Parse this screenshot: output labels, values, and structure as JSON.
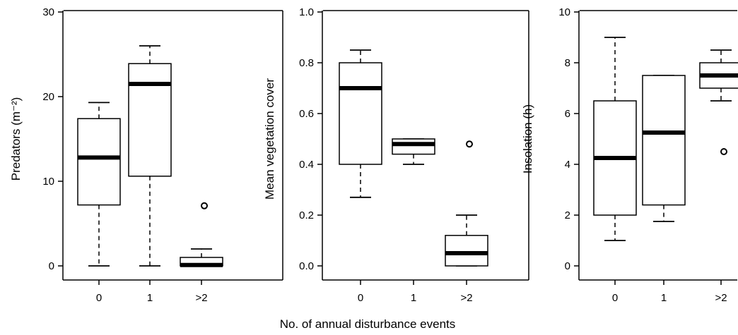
{
  "xlabel": "No. of annual disturbance events",
  "chart_data": [
    {
      "type": "box",
      "ylabel": "Predators (m⁻²)",
      "ylim": [
        0,
        30
      ],
      "yticks": [
        "0",
        "10",
        "20",
        "30"
      ],
      "ytick_values": [
        0,
        10,
        20,
        30
      ],
      "categories": [
        "0",
        "1",
        ">2"
      ],
      "boxes": [
        {
          "category": "0",
          "whisker_low": 0,
          "q1": 7.2,
          "median": 12.8,
          "q3": 17.4,
          "whisker_high": 19.3,
          "outliers": []
        },
        {
          "category": "1",
          "whisker_low": 0,
          "q1": 10.6,
          "median": 21.5,
          "q3": 23.9,
          "whisker_high": 26.0,
          "outliers": []
        },
        {
          "category": ">2",
          "whisker_low": 0,
          "q1": 0,
          "median": 0.1,
          "q3": 1.0,
          "whisker_high": 2.0,
          "outliers": [
            7.1
          ]
        }
      ],
      "grid": false
    },
    {
      "type": "box",
      "ylabel": "Mean vegetation cover",
      "ylim": [
        0,
        1.0
      ],
      "yticks": [
        "0.0",
        "0.2",
        "0.4",
        "0.6",
        "0.8",
        "1.0"
      ],
      "ytick_values": [
        0,
        0.2,
        0.4,
        0.6,
        0.8,
        1.0
      ],
      "categories": [
        "0",
        "1",
        ">2"
      ],
      "boxes": [
        {
          "category": "0",
          "whisker_low": 0.27,
          "q1": 0.4,
          "median": 0.7,
          "q3": 0.8,
          "whisker_high": 0.85,
          "outliers": []
        },
        {
          "category": "1",
          "whisker_low": 0.4,
          "q1": 0.44,
          "median": 0.48,
          "q3": 0.5,
          "whisker_high": 0.5,
          "outliers": []
        },
        {
          "category": ">2",
          "whisker_low": 0.0,
          "q1": 0.0,
          "median": 0.05,
          "q3": 0.12,
          "whisker_high": 0.2,
          "outliers": [
            0.48
          ]
        }
      ],
      "grid": false
    },
    {
      "type": "box",
      "ylabel": "Insolation (h)",
      "ylim": [
        0,
        10
      ],
      "yticks": [
        "0",
        "2",
        "4",
        "6",
        "8",
        "10"
      ],
      "ytick_values": [
        0,
        2,
        4,
        6,
        8,
        10
      ],
      "categories": [
        "0",
        "1",
        ">2"
      ],
      "boxes": [
        {
          "category": "0",
          "whisker_low": 1.0,
          "q1": 2.0,
          "median": 4.25,
          "q3": 6.5,
          "whisker_high": 9.0,
          "outliers": []
        },
        {
          "category": "1",
          "whisker_low": 1.75,
          "q1": 2.4,
          "median": 5.25,
          "q3": 7.5,
          "whisker_high": 7.5,
          "outliers": []
        },
        {
          "category": ">2",
          "whisker_low": 6.5,
          "q1": 7.0,
          "median": 7.5,
          "q3": 8.0,
          "whisker_high": 8.5,
          "outliers": [
            4.5
          ]
        }
      ],
      "grid": false
    }
  ]
}
